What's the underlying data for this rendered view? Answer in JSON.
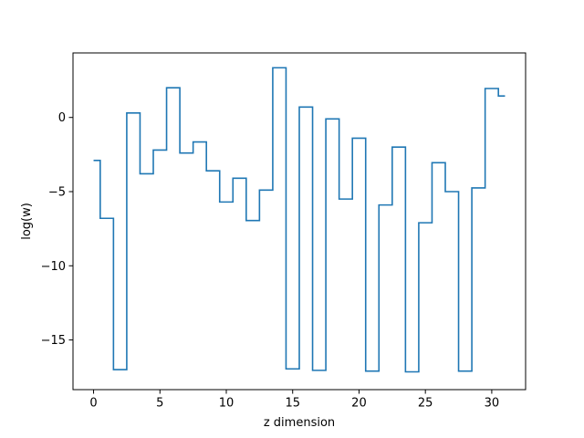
{
  "chart_data": {
    "type": "line",
    "drawstyle": "steps-mid",
    "title": "",
    "xlabel": "z dimension",
    "ylabel": "log(w)",
    "xlim": [
      -1.55,
      32.55
    ],
    "ylim": [
      -18.35,
      4.35
    ],
    "xticks": [
      0,
      5,
      10,
      15,
      20,
      25,
      30
    ],
    "yticks": [
      -15,
      -10,
      -5,
      0
    ],
    "ytick_labels": [
      "−15",
      "−10",
      "−5",
      "0"
    ],
    "grid": false,
    "legend": "none",
    "series": [
      {
        "color": "#1f77b4",
        "x": [
          0,
          1,
          2,
          3,
          4,
          5,
          6,
          7,
          8,
          9,
          10,
          11,
          12,
          13,
          14,
          15,
          16,
          17,
          18,
          19,
          20,
          21,
          22,
          23,
          24,
          25,
          26,
          27,
          28,
          29,
          30,
          31
        ],
        "y": [
          -2.9,
          -6.8,
          -17.0,
          0.3,
          -3.8,
          -2.2,
          2.0,
          -2.4,
          -1.65,
          -3.6,
          -5.7,
          -4.1,
          -6.95,
          -4.9,
          3.35,
          -16.95,
          0.7,
          -17.05,
          -0.1,
          -5.5,
          -1.4,
          -17.1,
          -5.9,
          -2.0,
          -17.15,
          -7.1,
          -3.05,
          -5.0,
          -17.1,
          -4.75,
          1.95,
          1.45
        ]
      }
    ]
  }
}
